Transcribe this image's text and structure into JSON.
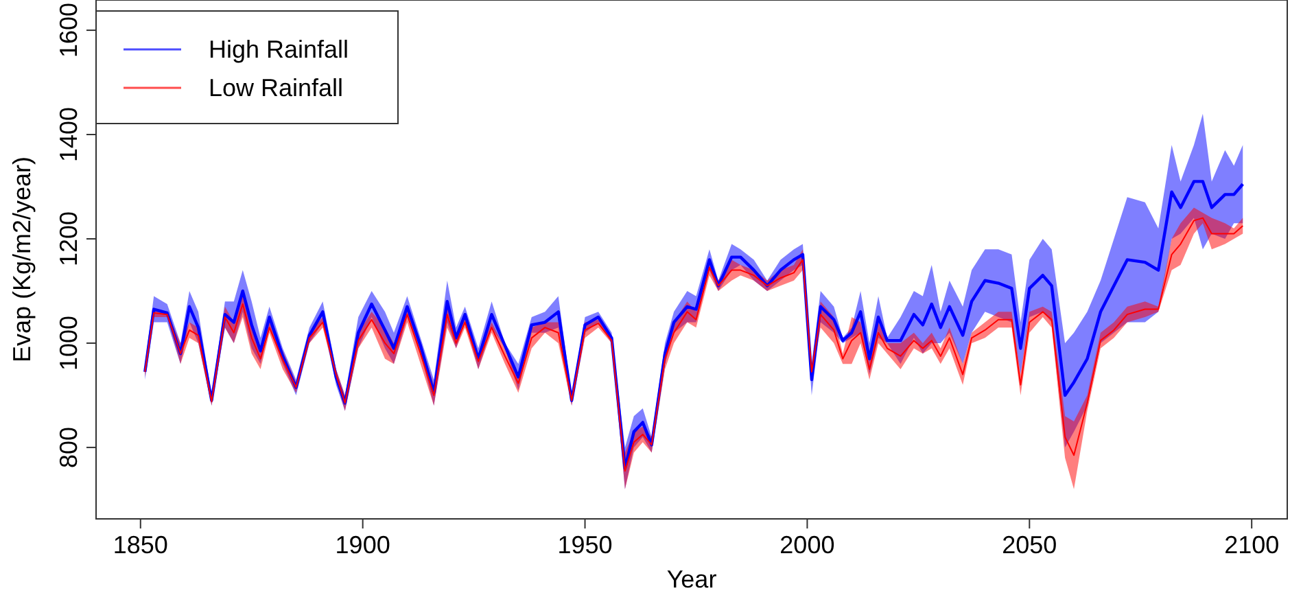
{
  "chart_data": {
    "type": "line",
    "xlabel": "Year",
    "ylabel": "Evap (Kg/m2/year)",
    "xlim": [
      1840,
      2108
    ],
    "ylim": [
      663,
      1658
    ],
    "xticks": [
      1850,
      1900,
      1950,
      2000,
      2050,
      2100
    ],
    "yticks": [
      800,
      1000,
      1200,
      1400,
      1600
    ],
    "legend": "top left",
    "grid": false,
    "x": [
      1851,
      1853,
      1856,
      1859,
      1861,
      1863,
      1866,
      1869,
      1871,
      1873,
      1875,
      1877,
      1879,
      1882,
      1885,
      1888,
      1891,
      1894,
      1896,
      1899,
      1902,
      1905,
      1907,
      1910,
      1913,
      1916,
      1919,
      1921,
      1923,
      1926,
      1929,
      1932,
      1935,
      1938,
      1941,
      1944,
      1947,
      1950,
      1953,
      1956,
      1959,
      1961,
      1963,
      1965,
      1968,
      1970,
      1973,
      1975,
      1978,
      1980,
      1983,
      1985,
      1988,
      1991,
      1994,
      1997,
      1999,
      2001,
      2003,
      2006,
      2008,
      2010,
      2012,
      2014,
      2016,
      2018,
      2021,
      2024,
      2026,
      2028,
      2030,
      2032,
      2035,
      2037,
      2040,
      2043,
      2046,
      2048,
      2050,
      2053,
      2055,
      2058,
      2060,
      2063,
      2066,
      2069,
      2072,
      2076,
      2079,
      2082,
      2084,
      2087,
      2089,
      2091,
      2094,
      2096,
      2098
    ],
    "series": [
      {
        "name": "High Rainfall",
        "color": "#0000ff",
        "values": [
          945,
          1065,
          1058,
          980,
          1070,
          1030,
          890,
          1055,
          1040,
          1100,
          1035,
          985,
          1050,
          975,
          915,
          1015,
          1060,
          935,
          885,
          1020,
          1075,
          1025,
          990,
          1070,
          995,
          905,
          1080,
          1010,
          1055,
          970,
          1055,
          995,
          935,
          1035,
          1040,
          1060,
          890,
          1035,
          1050,
          1010,
          760,
          830,
          848,
          805,
          980,
          1040,
          1070,
          1065,
          1160,
          1110,
          1165,
          1165,
          1140,
          1110,
          1140,
          1160,
          1170,
          930,
          1070,
          1045,
          1005,
          1020,
          1060,
          970,
          1050,
          1005,
          1005,
          1055,
          1035,
          1075,
          1030,
          1070,
          1015,
          1080,
          1120,
          1115,
          1105,
          990,
          1105,
          1130,
          1110,
          900,
          925,
          970,
          1060,
          1110,
          1160,
          1155,
          1140,
          1290,
          1260,
          1310,
          1310,
          1260,
          1285,
          1285,
          1305
        ],
        "lower": [
          930,
          1040,
          1040,
          960,
          1040,
          1000,
          880,
          1030,
          1000,
          1060,
          990,
          960,
          1030,
          960,
          900,
          1000,
          1040,
          920,
          870,
          990,
          1050,
          990,
          960,
          1050,
          980,
          880,
          1040,
          990,
          1040,
          950,
          1030,
          990,
          910,
          1020,
          1020,
          1030,
          880,
          1020,
          1040,
          1000,
          720,
          800,
          820,
          790,
          960,
          1020,
          1040,
          1040,
          1140,
          1100,
          1140,
          1150,
          1120,
          1100,
          1120,
          1140,
          1150,
          900,
          1040,
          1020,
          1000,
          1010,
          1020,
          940,
          1010,
          1000,
          960,
          1010,
          980,
          1000,
          1000,
          1020,
          960,
          1020,
          1060,
          1050,
          1040,
          940,
          1050,
          1060,
          1040,
          800,
          830,
          880,
          1000,
          1020,
          1040,
          1040,
          1060,
          1200,
          1210,
          1240,
          1180,
          1210,
          1200,
          1230,
          1230
        ],
        "upper": [
          960,
          1090,
          1075,
          1000,
          1100,
          1060,
          900,
          1080,
          1080,
          1140,
          1080,
          1010,
          1070,
          990,
          930,
          1030,
          1080,
          950,
          900,
          1050,
          1100,
          1060,
          1020,
          1090,
          1010,
          930,
          1120,
          1030,
          1070,
          990,
          1080,
          1000,
          960,
          1050,
          1060,
          1090,
          900,
          1050,
          1060,
          1020,
          800,
          860,
          875,
          820,
          1000,
          1060,
          1100,
          1090,
          1180,
          1120,
          1190,
          1180,
          1160,
          1120,
          1160,
          1180,
          1190,
          960,
          1100,
          1070,
          1010,
          1030,
          1100,
          1000,
          1090,
          1010,
          1050,
          1100,
          1090,
          1150,
          1060,
          1120,
          1070,
          1140,
          1180,
          1180,
          1170,
          1040,
          1160,
          1200,
          1180,
          1000,
          1020,
          1060,
          1120,
          1200,
          1280,
          1270,
          1220,
          1380,
          1310,
          1380,
          1440,
          1310,
          1370,
          1340,
          1380
        ]
      },
      {
        "name": "Low Rainfall",
        "color": "#ff0000",
        "values": [
          945,
          1058,
          1055,
          980,
          1025,
          1015,
          888,
          1050,
          1020,
          1075,
          1010,
          970,
          1030,
          968,
          915,
          1010,
          1040,
          940,
          885,
          1005,
          1045,
          1000,
          980,
          1055,
          980,
          900,
          1055,
          1000,
          1040,
          965,
          1030,
          975,
          923,
          1010,
          1030,
          1020,
          890,
          1025,
          1038,
          1005,
          755,
          810,
          825,
          805,
          970,
          1020,
          1060,
          1045,
          1145,
          1110,
          1140,
          1140,
          1130,
          1110,
          1125,
          1135,
          1160,
          945,
          1055,
          1025,
          970,
          1005,
          1020,
          950,
          1020,
          990,
          975,
          1005,
          990,
          1005,
          975,
          1010,
          940,
          1010,
          1025,
          1045,
          1045,
          920,
          1040,
          1060,
          1045,
          820,
          785,
          885,
          1005,
          1025,
          1055,
          1065,
          1065,
          1170,
          1190,
          1235,
          1240,
          1210,
          1210,
          1210,
          1225
        ],
        "lower": [
          935,
          1050,
          1050,
          960,
          1010,
          1000,
          880,
          1030,
          1000,
          1050,
          980,
          950,
          1020,
          950,
          905,
          1000,
          1030,
          930,
          870,
          990,
          1030,
          970,
          960,
          1040,
          960,
          880,
          1030,
          990,
          1030,
          950,
          1020,
          960,
          905,
          990,
          1020,
          1000,
          880,
          1010,
          1030,
          1000,
          720,
          790,
          810,
          790,
          950,
          1000,
          1040,
          1030,
          1130,
          1100,
          1120,
          1130,
          1120,
          1100,
          1110,
          1120,
          1140,
          930,
          1030,
          1000,
          960,
          960,
          1000,
          930,
          1000,
          980,
          950,
          990,
          980,
          990,
          960,
          990,
          920,
          1000,
          1010,
          1030,
          1030,
          900,
          1020,
          1050,
          1030,
          780,
          720,
          870,
          990,
          1010,
          1040,
          1050,
          1060,
          1140,
          1150,
          1210,
          1230,
          1180,
          1190,
          1200,
          1210
        ],
        "upper": [
          955,
          1065,
          1060,
          1000,
          1040,
          1030,
          895,
          1070,
          1040,
          1100,
          1040,
          990,
          1040,
          985,
          925,
          1020,
          1050,
          950,
          900,
          1020,
          1060,
          1030,
          1000,
          1070,
          1000,
          920,
          1080,
          1010,
          1050,
          980,
          1040,
          990,
          940,
          1030,
          1040,
          1040,
          900,
          1040,
          1045,
          1010,
          790,
          830,
          840,
          820,
          990,
          1040,
          1080,
          1060,
          1160,
          1120,
          1160,
          1150,
          1140,
          1120,
          1140,
          1150,
          1180,
          960,
          1080,
          1050,
          980,
          1050,
          1040,
          970,
          1040,
          1000,
          1000,
          1020,
          1000,
          1020,
          990,
          1030,
          960,
          1020,
          1040,
          1060,
          1060,
          940,
          1060,
          1070,
          1060,
          860,
          850,
          900,
          1020,
          1040,
          1070,
          1080,
          1070,
          1200,
          1230,
          1260,
          1250,
          1240,
          1230,
          1220,
          1240
        ]
      }
    ]
  }
}
